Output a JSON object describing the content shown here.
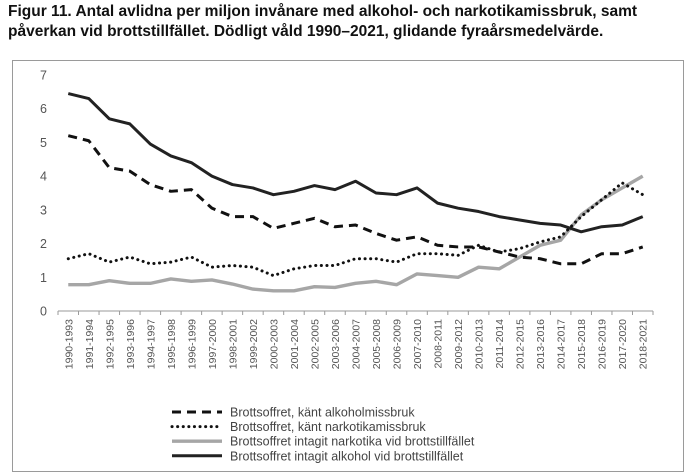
{
  "title_line1": "Figur 11. Antal avlidna per miljon invånare med alkohol- och narkotikamissbruk, samt",
  "title_line2": "påverkan vid brottstillfället. Dödligt våld 1990–2021, glidande fyraårsmedelvärde.",
  "chart_data": {
    "type": "line",
    "title": "Figur 11. Antal avlidna per miljon invånare med alkohol- och narkotikamissbruk, samt påverkan vid brottstillfället. Dödligt våld 1990–2021, glidande fyraårsmedelvärde.",
    "xlabel": "",
    "ylabel": "",
    "ylim": [
      0,
      7
    ],
    "yticks": [
      0,
      1,
      2,
      3,
      4,
      5,
      6,
      7
    ],
    "grid": false,
    "legend_position": "bottom",
    "categories": [
      "1990-1993",
      "1991-1994",
      "1992-1995",
      "1993-1996",
      "1994-1997",
      "1995-1998",
      "1996-1999",
      "1997-2000",
      "1998-2001",
      "1999-2002",
      "2000-2003",
      "2001-2004",
      "2002-2005",
      "2003-2006",
      "2004-2007",
      "2005-2008",
      "2006-2009",
      "2007-2010",
      "2008-2011",
      "2009-2012",
      "2010-2013",
      "2011-2014",
      "2012-2015",
      "2013-2016",
      "2014-2017",
      "2015-2018",
      "2016-2019",
      "2017-2020",
      "2018-2021"
    ],
    "series": [
      {
        "name": "Brottsoffret, känt alkoholmissbruk",
        "style": "dashed",
        "color": "#111111",
        "values": [
          5.2,
          5.05,
          4.25,
          4.15,
          3.75,
          3.55,
          3.6,
          3.05,
          2.8,
          2.8,
          2.45,
          2.6,
          2.75,
          2.5,
          2.55,
          2.3,
          2.1,
          2.2,
          1.95,
          1.9,
          1.9,
          1.75,
          1.6,
          1.55,
          1.4,
          1.4,
          1.7,
          1.7,
          1.9
        ]
      },
      {
        "name": "Brottsoffret, känt narkotikamissbruk",
        "style": "dotted",
        "color": "#111111",
        "values": [
          1.55,
          1.7,
          1.45,
          1.6,
          1.4,
          1.45,
          1.6,
          1.3,
          1.35,
          1.3,
          1.05,
          1.25,
          1.35,
          1.35,
          1.55,
          1.55,
          1.45,
          1.7,
          1.7,
          1.65,
          1.95,
          1.75,
          1.85,
          2.05,
          2.2,
          2.8,
          3.3,
          3.8,
          3.45
        ]
      },
      {
        "name": "Brottsoffret intagit narkotika vid brottstillfället",
        "style": "solid",
        "color": "#a6a6a6",
        "values": [
          0.78,
          0.78,
          0.9,
          0.82,
          0.82,
          0.95,
          0.88,
          0.92,
          0.8,
          0.65,
          0.6,
          0.6,
          0.72,
          0.7,
          0.82,
          0.88,
          0.78,
          1.1,
          1.05,
          1.0,
          1.3,
          1.25,
          1.6,
          1.95,
          2.1,
          2.85,
          3.3,
          3.65,
          4.0
        ]
      },
      {
        "name": "Brottsoffret intagit alkohol vid brottstillfället",
        "style": "solid",
        "color": "#222222",
        "values": [
          6.45,
          6.3,
          5.7,
          5.55,
          4.95,
          4.6,
          4.4,
          4.0,
          3.75,
          3.65,
          3.45,
          3.55,
          3.72,
          3.6,
          3.85,
          3.5,
          3.45,
          3.65,
          3.2,
          3.05,
          2.95,
          2.8,
          2.7,
          2.6,
          2.55,
          2.35,
          2.5,
          2.55,
          2.8
        ]
      }
    ]
  }
}
